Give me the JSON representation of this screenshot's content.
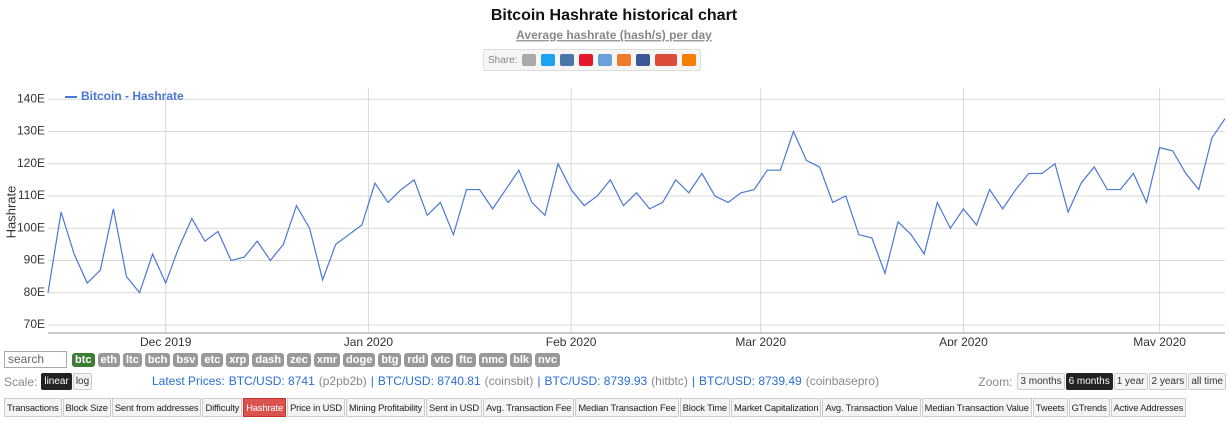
{
  "chart_data": {
    "type": "line",
    "title": "Bitcoin Hashrate historical chart",
    "subtitle": "Average hashrate (hash/s) per day",
    "y_label": "Hashrate",
    "xlim": [
      0,
      90
    ],
    "xticks": [
      {
        "value": 9,
        "label": "Dec 2019"
      },
      {
        "value": 24.5,
        "label": "Jan 2020"
      },
      {
        "value": 40,
        "label": "Feb 2020"
      },
      {
        "value": 54.5,
        "label": "Mar 2020"
      },
      {
        "value": 70,
        "label": "Apr 2020"
      },
      {
        "value": 85,
        "label": "May 2020"
      }
    ],
    "ylim": [
      67.5,
      143.5
    ],
    "yticks": [
      {
        "value": 70,
        "label": "70E"
      },
      {
        "value": 80,
        "label": "80E"
      },
      {
        "value": 90,
        "label": "90E"
      },
      {
        "value": 100,
        "label": "100E"
      },
      {
        "value": 110,
        "label": "110E"
      },
      {
        "value": 120,
        "label": "120E"
      },
      {
        "value": 130,
        "label": "130E"
      },
      {
        "value": 140,
        "label": "140E"
      }
    ],
    "grid": true,
    "legend": "top-left",
    "series": [
      {
        "name": "Bitcoin - Hashrate",
        "color": "#4a78d4",
        "values": [
          80,
          105,
          92,
          83,
          87,
          106,
          85,
          80,
          92,
          83,
          94,
          103,
          96,
          99,
          90,
          91,
          96,
          90,
          95,
          107,
          100,
          84,
          95,
          98,
          101,
          114,
          108,
          112,
          115,
          104,
          108,
          98,
          112,
          112,
          106,
          112,
          118,
          108,
          104,
          120,
          112,
          107,
          110,
          115,
          107,
          111,
          106,
          108,
          115,
          111,
          117,
          110,
          108,
          111,
          112,
          118,
          118,
          130,
          121,
          119,
          108,
          110,
          98,
          97,
          86,
          102,
          98,
          92,
          108,
          100,
          106,
          101,
          112,
          106,
          112,
          117,
          117,
          120,
          105,
          114,
          119,
          112,
          112,
          117,
          108,
          125,
          124,
          117,
          112,
          128,
          134
        ]
      }
    ]
  },
  "ui": {
    "share_label": "Share:",
    "search_placeholder": "search",
    "coins": [
      "btc",
      "eth",
      "ltc",
      "bch",
      "bsv",
      "etc",
      "xrp",
      "dash",
      "zec",
      "xmr",
      "doge",
      "btg",
      "rdd",
      "vtc",
      "ftc",
      "nmc",
      "blk",
      "nvc"
    ],
    "active_coin": 0,
    "scale_label": "Scale:",
    "scales": [
      "linear",
      "log"
    ],
    "active_scale": 0,
    "prices_label": "Latest Prices:",
    "prices": [
      {
        "price": "BTC/USD: 8741",
        "source": "(p2pb2b)"
      },
      {
        "price": "BTC/USD: 8740.81",
        "source": "(coinsbit)"
      },
      {
        "price": "BTC/USD: 8739.93",
        "source": "(hitbtc)"
      },
      {
        "price": "BTC/USD: 8739.49",
        "source": "(coinbasepro)"
      }
    ],
    "separator": "|",
    "zoom_label": "Zoom:",
    "zooms": [
      "3 months",
      "6 months",
      "1 year",
      "2 years",
      "all time"
    ],
    "active_zoom": 1,
    "tabs": [
      "Transactions",
      "Block Size",
      "Sent from addresses",
      "Difficulty",
      "Hashrate",
      "Price in USD",
      "Mining Profitability",
      "Sent in USD",
      "Avg. Transaction Fee",
      "Median Transaction Fee",
      "Block Time",
      "Market Capitalization",
      "Avg. Transaction Value",
      "Median Transaction Value",
      "Tweets",
      "GTrends",
      "Active Addresses"
    ],
    "active_tab": 4
  }
}
